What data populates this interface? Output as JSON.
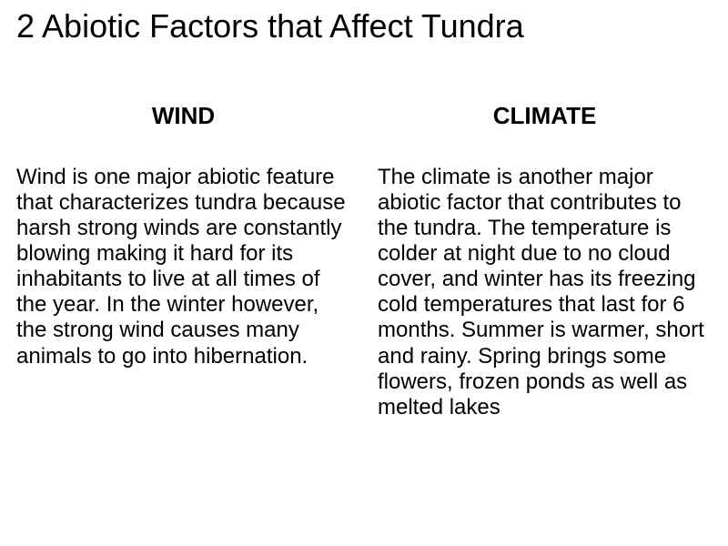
{
  "title": "2 Abiotic Factors that Affect Tundra",
  "columns": {
    "left": {
      "heading": "WIND",
      "body": "Wind is one major abiotic feature that characterizes tundra because harsh strong winds are constantly blowing making it\nhard for its inhabitants to live at all times of the year. In the winter however, the strong wind\ncauses many animals to go into hibernation."
    },
    "right": {
      "heading": "CLIMATE",
      "body": "The climate is another major abiotic factor that contributes to the tundra. The temperature is colder at night due to no cloud cover, and winter\nhas its freezing cold temperatures that last for 6 months. Summer is warmer, short and rainy.\nSpring brings some flowers, frozen ponds as well as melted lakes"
    }
  },
  "style": {
    "background_color": "#ffffff",
    "text_color": "#000000",
    "title_fontsize": 36,
    "subheading_fontsize": 26,
    "body_fontsize": 24,
    "font_family": "Arial"
  }
}
